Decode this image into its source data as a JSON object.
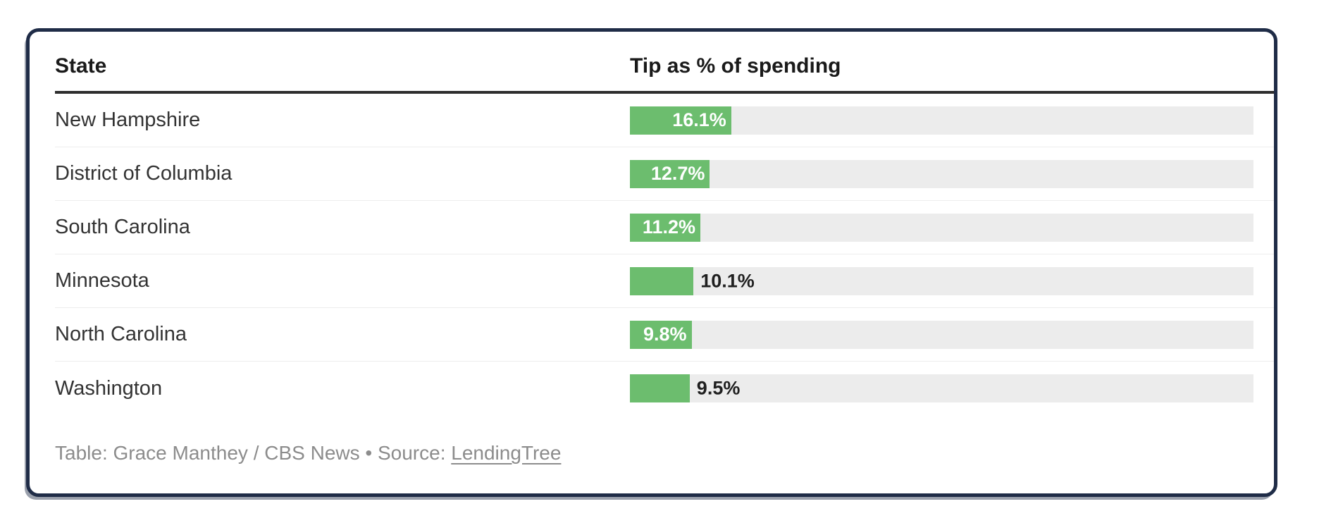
{
  "table": {
    "columns": [
      "State",
      "Tip as % of spending"
    ],
    "rows": [
      {
        "state": "New Hampshire",
        "value": 16.1,
        "display": "16.1%",
        "label_inside": true
      },
      {
        "state": "District of Columbia",
        "value": 12.7,
        "display": "12.7%",
        "label_inside": true
      },
      {
        "state": "South Carolina",
        "value": 11.2,
        "display": "11.2%",
        "label_inside": true
      },
      {
        "state": "Minnesota",
        "value": 10.1,
        "display": "10.1%",
        "label_inside": false
      },
      {
        "state": "North Carolina",
        "value": 9.8,
        "display": "9.8%",
        "label_inside": true
      },
      {
        "state": "Washington",
        "value": 9.5,
        "display": "9.5%",
        "label_inside": false
      }
    ]
  },
  "footer": {
    "prefix": "Table: Grace Manthey / CBS News • Source: ",
    "link_label": "LendingTree"
  },
  "colors": {
    "bar": "#6cbd6e",
    "track": "#ececec",
    "card_border": "#1f2c47",
    "header_rule": "#2e2e2e",
    "row_divider": "#ededed",
    "footer_text": "#8c8c8c",
    "state_text": "#333333",
    "header_text": "#1a1a1a",
    "label_inside": "#ffffff",
    "label_outside": "#1f1f1f"
  },
  "chart_data": {
    "type": "bar",
    "orientation": "horizontal",
    "title": "",
    "xlabel": "Tip as % of spending",
    "ylabel": "State",
    "categories": [
      "New Hampshire",
      "District of Columbia",
      "South Carolina",
      "Minnesota",
      "North Carolina",
      "Washington"
    ],
    "values": [
      16.1,
      12.7,
      11.2,
      10.1,
      9.8,
      9.5
    ],
    "value_labels": [
      "16.1%",
      "12.7%",
      "11.2%",
      "10.1%",
      "9.8%",
      "9.5%"
    ],
    "xlim": [
      0,
      100
    ],
    "grid": false,
    "legend": false,
    "attribution": "Table: Grace Manthey / CBS News • Source: LendingTree"
  }
}
